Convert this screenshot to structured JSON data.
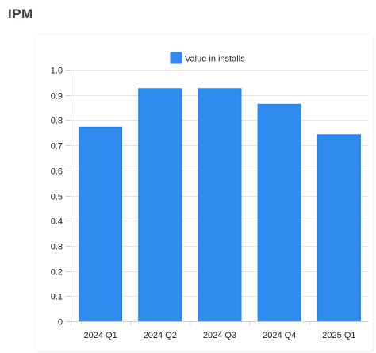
{
  "page": {
    "title": "IPM"
  },
  "chart_data": {
    "type": "bar",
    "categories": [
      "2024 Q1",
      "2024 Q2",
      "2024 Q3",
      "2024 Q4",
      "2025 Q1"
    ],
    "series": [
      {
        "name": "Value in installs",
        "values": [
          0.772,
          0.925,
          0.925,
          0.863,
          0.742
        ],
        "color": "#2f8bef",
        "border_color": "#2a7fe0"
      }
    ],
    "ylim": [
      0,
      1.0
    ],
    "yticks": [
      "0",
      "0.1",
      "0.2",
      "0.3",
      "0.4",
      "0.5",
      "0.6",
      "0.7",
      "0.8",
      "0.9",
      "1.0"
    ],
    "grid": true,
    "legend": "top-center"
  }
}
